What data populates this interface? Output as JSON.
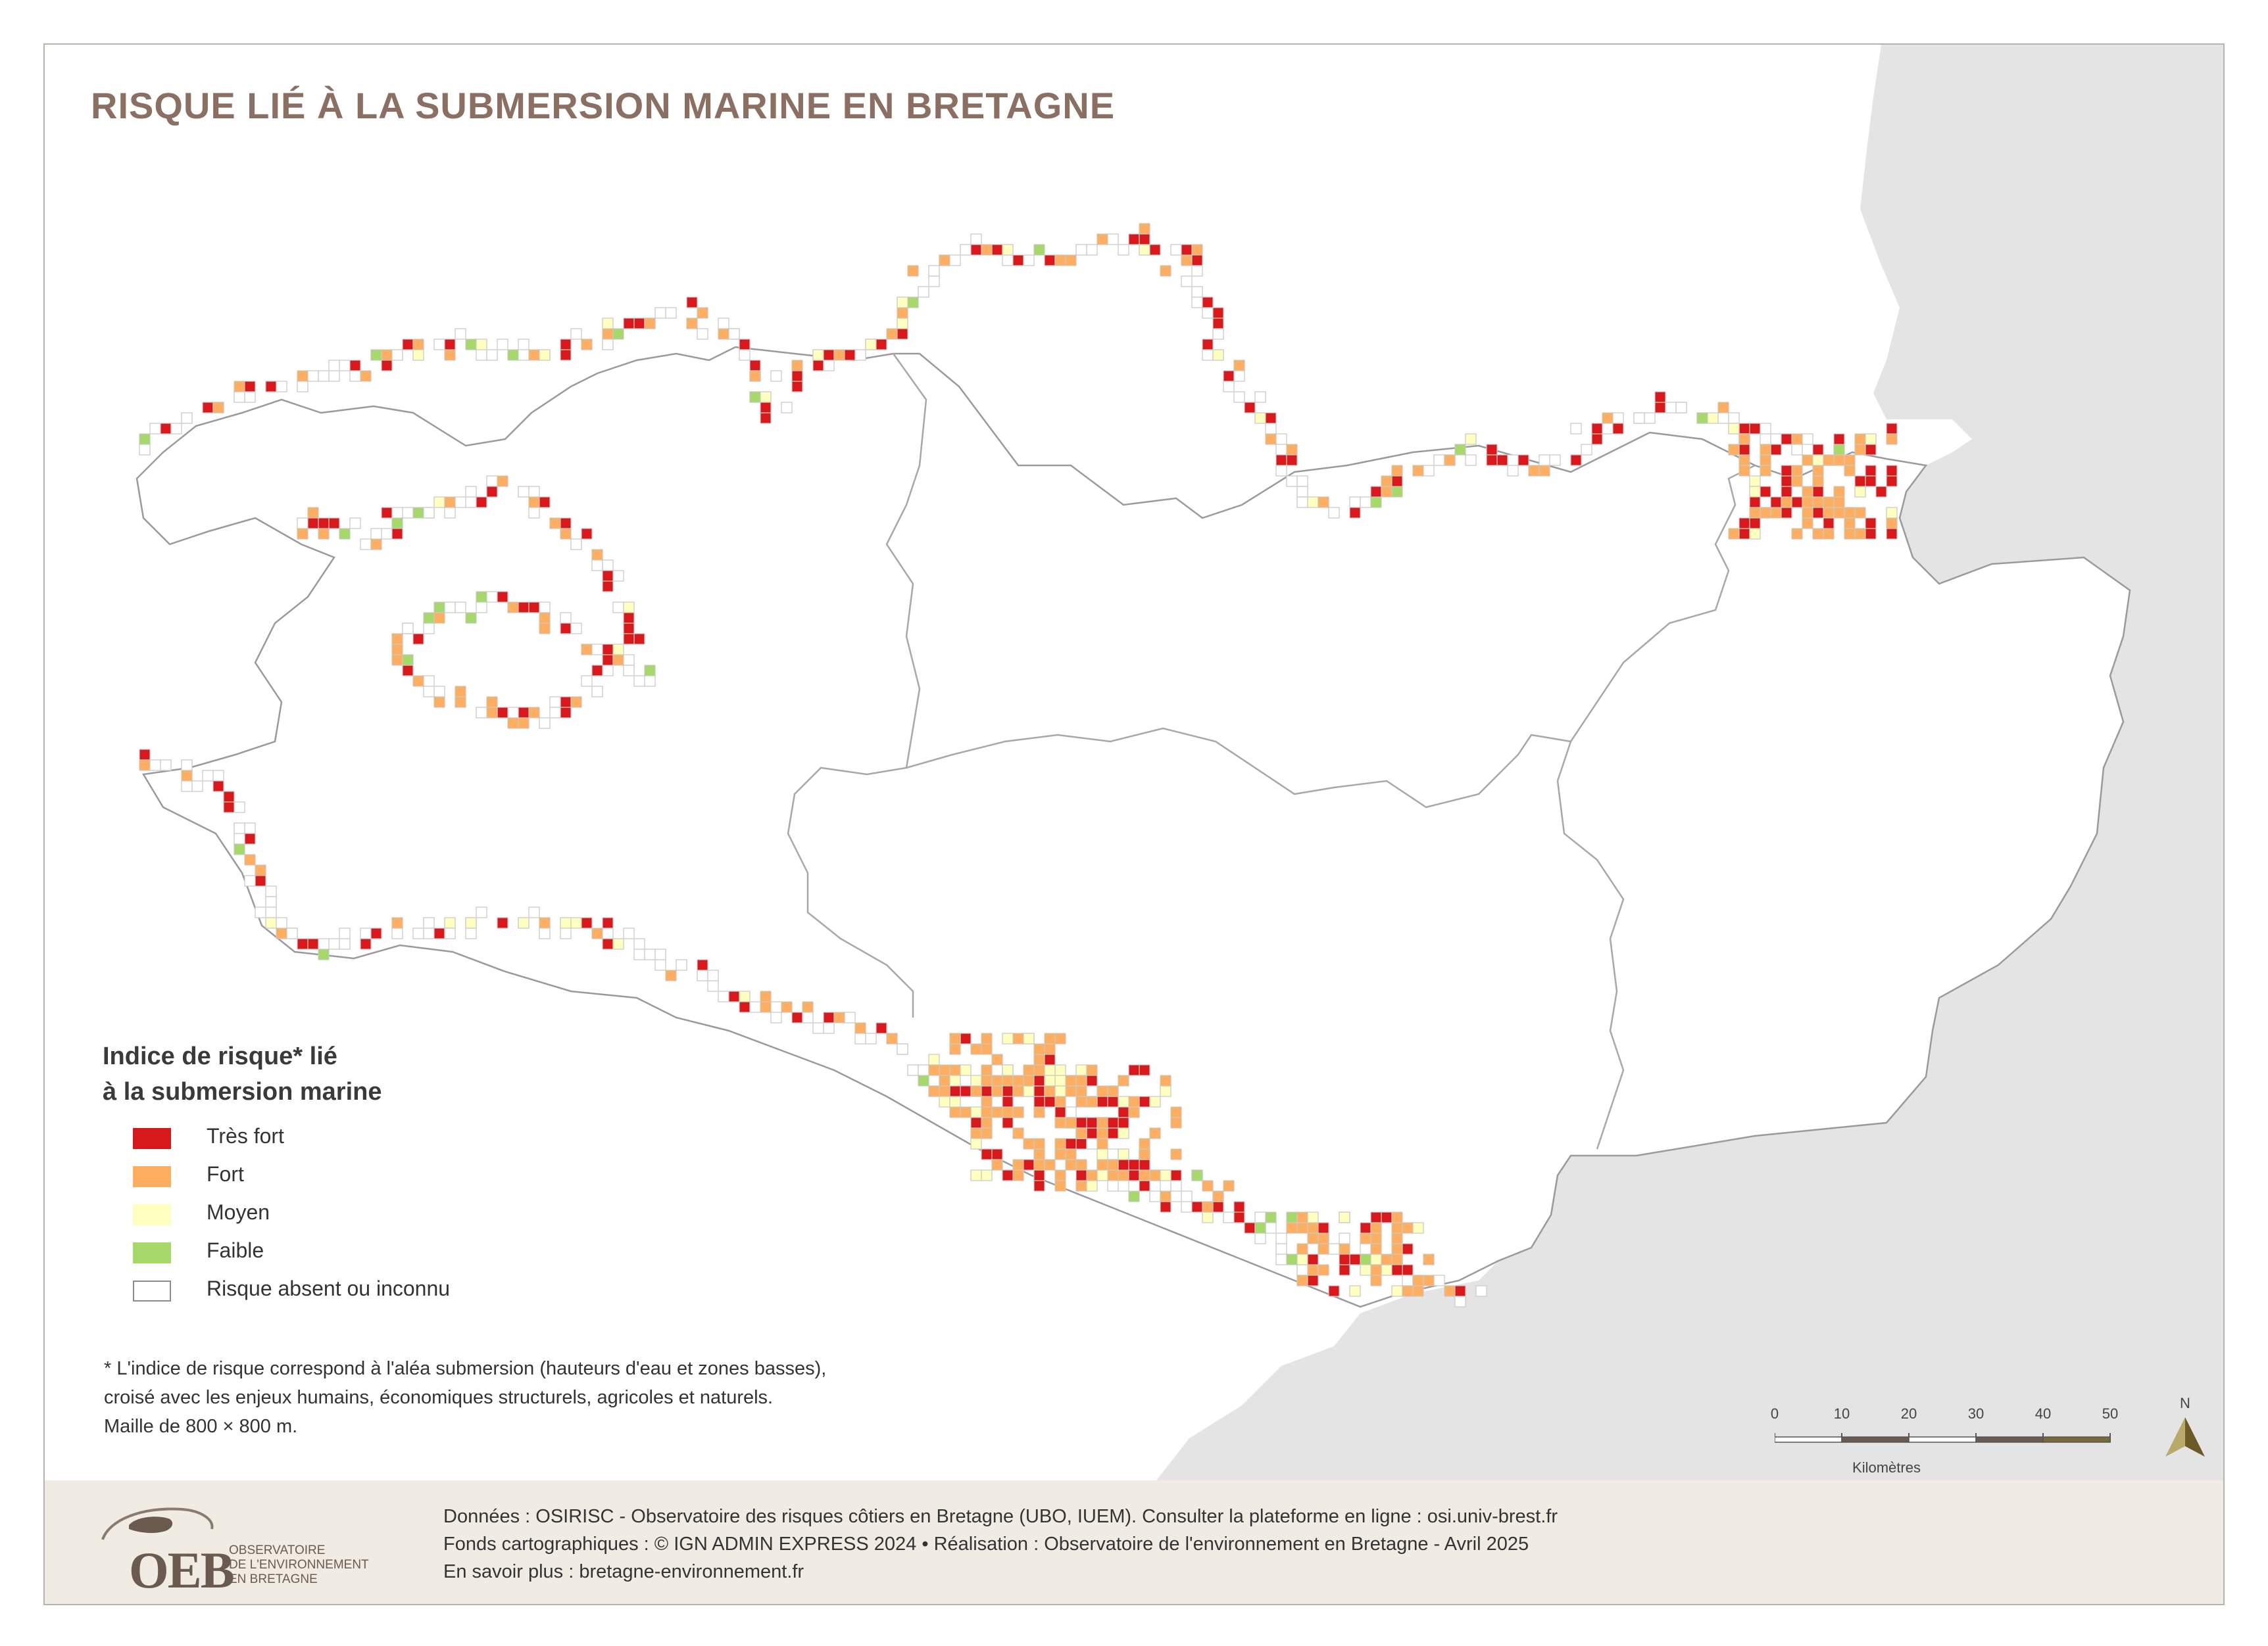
{
  "title": "RISQUE LIÉ À LA SUBMERSION MARINE EN BRETAGNE",
  "legend": {
    "title_line1": "Indice de risque* lié",
    "title_line2": "à la submersion marine",
    "items": [
      {
        "label": "Très fort",
        "color": "#d7191c"
      },
      {
        "label": "Fort",
        "color": "#fdae61"
      },
      {
        "label": "Moyen",
        "color": "#ffffbf"
      },
      {
        "label": "Faible",
        "color": "#a6d96a"
      },
      {
        "label": "Risque absent ou inconnu",
        "color": "#ffffff"
      }
    ]
  },
  "footnote": {
    "line1": "* L'indice de risque correspond à l'aléa submersion (hauteurs d'eau et zones basses),",
    "line2": "croisé avec les enjeux humains, économiques structurels, agricoles et naturels.",
    "line3": "Maille de 800 × 800 m."
  },
  "scalebar": {
    "ticks": [
      "0",
      "10",
      "20",
      "30",
      "40",
      "50"
    ],
    "unit": "Kilomètres"
  },
  "north": {
    "label": "N"
  },
  "footer": {
    "logo_text": "OEB",
    "logo_sub1": "OBSERVATOIRE",
    "logo_sub2": "DE L'ENVIRONNEMENT",
    "logo_sub3": "EN BRETAGNE",
    "credit_line1": "Données : OSIRISC - Observatoire des risques côtiers en Bretagne (UBO, IUEM). Consulter la plateforme en ligne : osi.univ-brest.fr",
    "credit_line2": "Fonds cartographiques : © IGN ADMIN EXPRESS 2024 • Réalisation : Observatoire de l'environnement en Bretagne - Avril 2025",
    "credit_line3": "En savoir plus : bretagne-environnement.fr"
  },
  "colors": {
    "tres_fort": "#d7191c",
    "fort": "#fdae61",
    "moyen": "#ffffbf",
    "faible": "#a6d96a",
    "land_outside": "#e4e4e4",
    "boundary": "#9a9a9a",
    "title": "#8a6f62"
  }
}
